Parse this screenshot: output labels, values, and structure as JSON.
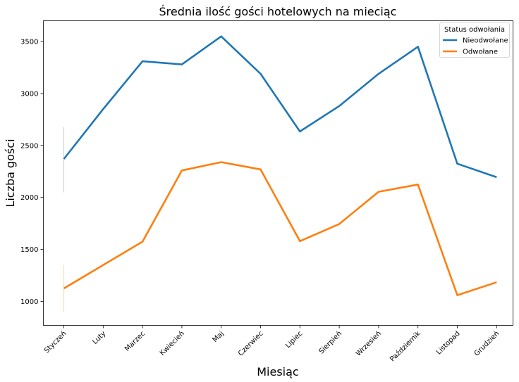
{
  "chart_data": {
    "type": "line",
    "title": "Średnia ilość gości hotelowych na mieciąc",
    "xlabel": "Miesiąc",
    "ylabel": "Liczba gości",
    "categories": [
      "Styczeń",
      "Luty",
      "Marzec",
      "Kwiecień",
      "Maj",
      "Czerwiec",
      "Lipiec",
      "Sierpień",
      "Wrzesień",
      "Październik",
      "Listopad",
      "Grudzień"
    ],
    "ylim": [
      770,
      3700
    ],
    "yticks": [
      1000,
      1500,
      2000,
      2500,
      3000,
      3500
    ],
    "grid": false,
    "legend": {
      "title": "Status odwołania",
      "placement": "top-right"
    },
    "series": [
      {
        "name": "Nieodwołane",
        "color": "#1f77b4",
        "values": [
          2370,
          2850,
          3310,
          3280,
          3550,
          3190,
          2635,
          2880,
          3190,
          3450,
          2325,
          2195
        ],
        "ci": [
          [
            2050,
            2680
          ],
          null,
          null,
          null,
          null,
          null,
          null,
          null,
          null,
          null,
          null,
          null
        ]
      },
      {
        "name": "Odwołane",
        "color": "#ff7f0e",
        "values": [
          1125,
          1350,
          1575,
          2260,
          2340,
          2270,
          1580,
          1745,
          2055,
          2125,
          1060,
          1185
        ],
        "ci": [
          [
            900,
            1350
          ],
          null,
          null,
          null,
          null,
          null,
          null,
          null,
          null,
          null,
          null,
          null
        ]
      }
    ]
  }
}
